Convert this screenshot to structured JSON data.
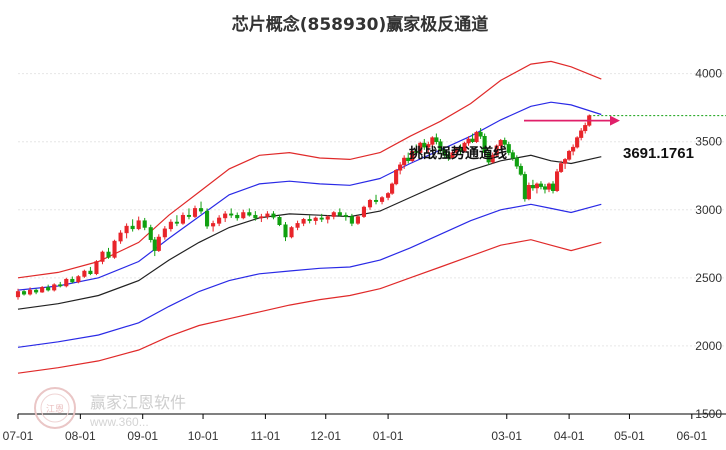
{
  "chart_data": {
    "type": "candlestick_channel",
    "title": "芯片概念(858930)赢家极反通道",
    "y_ticks": [
      "4000",
      "3500",
      "3000",
      "2500",
      "2000",
      "1500"
    ],
    "y_tick_values": [
      4000,
      3500,
      3000,
      2500,
      2000,
      1500
    ],
    "ylim": [
      1500,
      4100
    ],
    "x_ticks": [
      "07-01",
      "08-01",
      "09-01",
      "10-01",
      "11-01",
      "12-01",
      "01-01",
      "03-01",
      "04-01",
      "05-01",
      "06-01"
    ],
    "x_tick_days": [
      0,
      31,
      62,
      92,
      123,
      153,
      184,
      243,
      274,
      304,
      335
    ],
    "annotation": "挑战强势通道线",
    "last_price_label": "3691.1761",
    "last_price": 3691.1761,
    "grid": true,
    "colors": {
      "up": "#e8242a",
      "down": "#10a010",
      "outer_band": "#e02a2a",
      "inner_band": "#2a2ae6",
      "middle_line": "#222222",
      "arrow": "#e0206a"
    },
    "series": [
      {
        "name": "",
        "role": "outer-upper",
        "color": "#e02a2a",
        "points": [
          [
            0,
            2500
          ],
          [
            20,
            2540
          ],
          [
            40,
            2620
          ],
          [
            60,
            2760
          ],
          [
            75,
            2960
          ],
          [
            90,
            3130
          ],
          [
            105,
            3300
          ],
          [
            120,
            3400
          ],
          [
            135,
            3420
          ],
          [
            150,
            3380
          ],
          [
            165,
            3370
          ],
          [
            180,
            3420
          ],
          [
            195,
            3540
          ],
          [
            210,
            3650
          ],
          [
            225,
            3780
          ],
          [
            240,
            3950
          ],
          [
            255,
            4070
          ],
          [
            265,
            4090
          ],
          [
            275,
            4050
          ],
          [
            290,
            3960
          ]
        ]
      },
      {
        "name": "",
        "role": "inner-upper",
        "color": "#2a2ae6",
        "points": [
          [
            0,
            2410
          ],
          [
            20,
            2440
          ],
          [
            40,
            2500
          ],
          [
            60,
            2620
          ],
          [
            75,
            2790
          ],
          [
            90,
            2950
          ],
          [
            105,
            3110
          ],
          [
            120,
            3190
          ],
          [
            135,
            3210
          ],
          [
            150,
            3190
          ],
          [
            165,
            3180
          ],
          [
            180,
            3230
          ],
          [
            195,
            3340
          ],
          [
            210,
            3440
          ],
          [
            225,
            3540
          ],
          [
            240,
            3660
          ],
          [
            255,
            3760
          ],
          [
            265,
            3790
          ],
          [
            275,
            3770
          ],
          [
            290,
            3700
          ]
        ]
      },
      {
        "name": "",
        "role": "middle",
        "color": "#222222",
        "points": [
          [
            0,
            2270
          ],
          [
            20,
            2310
          ],
          [
            40,
            2370
          ],
          [
            60,
            2480
          ],
          [
            75,
            2630
          ],
          [
            90,
            2760
          ],
          [
            105,
            2870
          ],
          [
            120,
            2940
          ],
          [
            135,
            2970
          ],
          [
            150,
            2960
          ],
          [
            165,
            2950
          ],
          [
            180,
            2990
          ],
          [
            195,
            3090
          ],
          [
            210,
            3190
          ],
          [
            225,
            3290
          ],
          [
            240,
            3360
          ],
          [
            255,
            3400
          ],
          [
            265,
            3360
          ],
          [
            275,
            3340
          ],
          [
            290,
            3390
          ]
        ]
      },
      {
        "name": "",
        "role": "inner-lower",
        "color": "#2a2ae6",
        "points": [
          [
            0,
            1990
          ],
          [
            20,
            2030
          ],
          [
            40,
            2080
          ],
          [
            60,
            2170
          ],
          [
            75,
            2290
          ],
          [
            90,
            2400
          ],
          [
            105,
            2480
          ],
          [
            120,
            2530
          ],
          [
            135,
            2550
          ],
          [
            150,
            2570
          ],
          [
            165,
            2580
          ],
          [
            180,
            2630
          ],
          [
            195,
            2720
          ],
          [
            210,
            2820
          ],
          [
            225,
            2920
          ],
          [
            240,
            3000
          ],
          [
            255,
            3040
          ],
          [
            265,
            3010
          ],
          [
            275,
            2980
          ],
          [
            290,
            3040
          ]
        ]
      },
      {
        "name": "",
        "role": "outer-lower",
        "color": "#e02a2a",
        "points": [
          [
            0,
            1800
          ],
          [
            20,
            1840
          ],
          [
            40,
            1890
          ],
          [
            60,
            1970
          ],
          [
            75,
            2070
          ],
          [
            90,
            2150
          ],
          [
            105,
            2200
          ],
          [
            120,
            2250
          ],
          [
            135,
            2300
          ],
          [
            150,
            2340
          ],
          [
            165,
            2370
          ],
          [
            180,
            2420
          ],
          [
            195,
            2500
          ],
          [
            210,
            2580
          ],
          [
            225,
            2660
          ],
          [
            240,
            2740
          ],
          [
            255,
            2780
          ],
          [
            265,
            2740
          ],
          [
            275,
            2700
          ],
          [
            290,
            2760
          ]
        ]
      }
    ],
    "candles": [
      [
        0,
        2360,
        2420,
        2340,
        2400
      ],
      [
        3,
        2400,
        2410,
        2370,
        2380
      ],
      [
        6,
        2380,
        2430,
        2370,
        2410
      ],
      [
        9,
        2410,
        2420,
        2380,
        2395
      ],
      [
        12,
        2395,
        2440,
        2390,
        2430
      ],
      [
        15,
        2430,
        2450,
        2400,
        2410
      ],
      [
        18,
        2410,
        2460,
        2400,
        2450
      ],
      [
        21,
        2450,
        2470,
        2430,
        2440
      ],
      [
        24,
        2440,
        2500,
        2430,
        2490
      ],
      [
        27,
        2490,
        2510,
        2460,
        2470
      ],
      [
        30,
        2470,
        2520,
        2460,
        2510
      ],
      [
        33,
        2510,
        2560,
        2500,
        2550
      ],
      [
        36,
        2550,
        2580,
        2520,
        2530
      ],
      [
        39,
        2530,
        2630,
        2520,
        2620
      ],
      [
        42,
        2620,
        2700,
        2600,
        2690
      ],
      [
        45,
        2690,
        2720,
        2640,
        2650
      ],
      [
        48,
        2650,
        2780,
        2640,
        2770
      ],
      [
        51,
        2770,
        2850,
        2750,
        2830
      ],
      [
        54,
        2830,
        2900,
        2790,
        2880
      ],
      [
        57,
        2880,
        2930,
        2840,
        2860
      ],
      [
        60,
        2860,
        2950,
        2850,
        2920
      ],
      [
        63,
        2920,
        2940,
        2850,
        2870
      ],
      [
        66,
        2870,
        2890,
        2760,
        2780
      ],
      [
        68,
        2780,
        2800,
        2660,
        2700
      ],
      [
        70,
        2700,
        2820,
        2690,
        2800
      ],
      [
        73,
        2800,
        2880,
        2780,
        2860
      ],
      [
        76,
        2860,
        2930,
        2840,
        2910
      ],
      [
        79,
        2910,
        2960,
        2880,
        2900
      ],
      [
        82,
        2900,
        2980,
        2890,
        2960
      ],
      [
        85,
        2960,
        3010,
        2930,
        2950
      ],
      [
        88,
        2950,
        3030,
        2940,
        3010
      ],
      [
        91,
        3010,
        3060,
        2970,
        2990
      ],
      [
        94,
        2990,
        3010,
        2860,
        2880
      ],
      [
        97,
        2880,
        2920,
        2840,
        2900
      ],
      [
        100,
        2900,
        2960,
        2880,
        2940
      ],
      [
        103,
        2940,
        2990,
        2910,
        2970
      ],
      [
        106,
        2970,
        3010,
        2940,
        2960
      ],
      [
        109,
        2960,
        2980,
        2920,
        2940
      ],
      [
        112,
        2940,
        3000,
        2930,
        2980
      ],
      [
        115,
        2980,
        3010,
        2950,
        2960
      ],
      [
        118,
        2960,
        2990,
        2920,
        2940
      ],
      [
        121,
        2940,
        2970,
        2910,
        2950
      ],
      [
        124,
        2950,
        2990,
        2930,
        2970
      ],
      [
        127,
        2970,
        2990,
        2930,
        2945
      ],
      [
        130,
        2945,
        2960,
        2880,
        2890
      ],
      [
        133,
        2890,
        2910,
        2770,
        2800
      ],
      [
        136,
        2800,
        2880,
        2790,
        2870
      ],
      [
        139,
        2870,
        2920,
        2850,
        2900
      ],
      [
        142,
        2900,
        2940,
        2880,
        2930
      ],
      [
        145,
        2930,
        2960,
        2900,
        2920
      ],
      [
        148,
        2920,
        2950,
        2890,
        2940
      ],
      [
        151,
        2940,
        2970,
        2910,
        2930
      ],
      [
        154,
        2930,
        2960,
        2900,
        2950
      ],
      [
        157,
        2950,
        2990,
        2930,
        2980
      ],
      [
        160,
        2980,
        3010,
        2950,
        2960
      ],
      [
        163,
        2960,
        2980,
        2920,
        2950
      ],
      [
        166,
        2950,
        2970,
        2880,
        2900
      ],
      [
        169,
        2900,
        2960,
        2890,
        2950
      ],
      [
        172,
        2950,
        3030,
        2940,
        3020
      ],
      [
        175,
        3020,
        3080,
        3000,
        3070
      ],
      [
        178,
        3070,
        3110,
        3040,
        3060
      ],
      [
        181,
        3060,
        3100,
        3040,
        3090
      ],
      [
        184,
        3090,
        3130,
        3070,
        3120
      ],
      [
        186,
        3120,
        3200,
        3110,
        3190
      ],
      [
        188,
        3190,
        3300,
        3180,
        3290
      ],
      [
        190,
        3290,
        3350,
        3260,
        3330
      ],
      [
        192,
        3330,
        3400,
        3300,
        3380
      ],
      [
        194,
        3380,
        3420,
        3340,
        3360
      ],
      [
        196,
        3360,
        3440,
        3350,
        3430
      ],
      [
        198,
        3430,
        3480,
        3400,
        3420
      ],
      [
        200,
        3420,
        3500,
        3410,
        3490
      ],
      [
        202,
        3490,
        3520,
        3440,
        3460
      ],
      [
        204,
        3460,
        3500,
        3420,
        3480
      ],
      [
        206,
        3480,
        3540,
        3460,
        3530
      ],
      [
        208,
        3530,
        3560,
        3480,
        3500
      ],
      [
        210,
        3500,
        3520,
        3420,
        3440
      ],
      [
        212,
        3440,
        3460,
        3380,
        3400
      ],
      [
        214,
        3400,
        3430,
        3360,
        3380
      ],
      [
        216,
        3380,
        3440,
        3370,
        3420
      ],
      [
        218,
        3420,
        3460,
        3400,
        3450
      ],
      [
        220,
        3450,
        3480,
        3410,
        3430
      ],
      [
        222,
        3430,
        3500,
        3420,
        3490
      ],
      [
        224,
        3490,
        3540,
        3470,
        3520
      ],
      [
        226,
        3520,
        3560,
        3490,
        3500
      ],
      [
        228,
        3500,
        3580,
        3490,
        3570
      ],
      [
        230,
        3570,
        3600,
        3520,
        3540
      ],
      [
        232,
        3540,
        3560,
        3400,
        3420
      ],
      [
        234,
        3420,
        3440,
        3330,
        3350
      ],
      [
        236,
        3350,
        3420,
        3340,
        3400
      ],
      [
        238,
        3400,
        3480,
        3390,
        3470
      ],
      [
        240,
        3470,
        3520,
        3450,
        3510
      ],
      [
        242,
        3510,
        3530,
        3460,
        3480
      ],
      [
        244,
        3480,
        3500,
        3400,
        3420
      ],
      [
        246,
        3420,
        3440,
        3360,
        3380
      ],
      [
        248,
        3380,
        3400,
        3300,
        3320
      ],
      [
        250,
        3320,
        3340,
        3250,
        3260
      ],
      [
        252,
        3260,
        3280,
        3060,
        3080
      ],
      [
        254,
        3080,
        3200,
        3070,
        3180
      ],
      [
        256,
        3180,
        3220,
        3140,
        3160
      ],
      [
        258,
        3160,
        3200,
        3120,
        3190
      ],
      [
        260,
        3190,
        3210,
        3150,
        3170
      ],
      [
        262,
        3170,
        3190,
        3120,
        3150
      ],
      [
        264,
        3150,
        3200,
        3130,
        3190
      ],
      [
        266,
        3190,
        3210,
        3120,
        3140
      ],
      [
        268,
        3140,
        3300,
        3130,
        3280
      ],
      [
        270,
        3280,
        3360,
        3270,
        3340
      ],
      [
        272,
        3340,
        3380,
        3300,
        3370
      ],
      [
        274,
        3370,
        3440,
        3360,
        3430
      ],
      [
        276,
        3430,
        3480,
        3400,
        3460
      ],
      [
        278,
        3460,
        3540,
        3450,
        3530
      ],
      [
        280,
        3530,
        3600,
        3510,
        3580
      ],
      [
        282,
        3580,
        3640,
        3560,
        3620
      ],
      [
        284,
        3620,
        3700,
        3610,
        3691
      ]
    ]
  },
  "watermark": {
    "text": "赢家江恩软件",
    "url": "www.360...",
    "logo_text": "江恩"
  }
}
